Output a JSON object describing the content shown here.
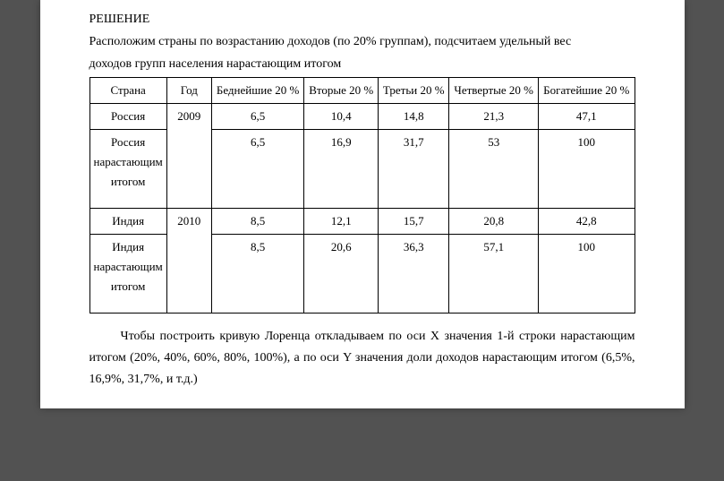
{
  "heading": "РЕШЕНИЕ",
  "intro_line1": "Расположим страны по возрастанию доходов (по 20% группам), подсчитаем удельный вес",
  "intro_line2": "доходов групп населения нарастающим итогом",
  "table": {
    "headers": {
      "country": "Страна",
      "year": "Год",
      "poorest": "Беднейшие 20 %",
      "second": "Вторые 20 %",
      "third": "Третьи 20 %",
      "fourth": "Четвертые 20 %",
      "richest": "Богатейшие 20 %"
    },
    "rows": [
      {
        "country": "Россия",
        "year": "2009",
        "c1": "6,5",
        "c2": "10,4",
        "c3": "14,8",
        "c4": "21,3",
        "c5": "47,1"
      },
      {
        "country": "Россия нарастающим итогом",
        "year": "",
        "c1": "6,5",
        "c2": "16,9",
        "c3": "31,7",
        "c4": "53",
        "c5": "100"
      },
      {
        "country": "Индия",
        "year": "2010",
        "c1": "8,5",
        "c2": "12,1",
        "c3": "15,7",
        "c4": "20,8",
        "c5": "42,8"
      },
      {
        "country": "Индия нарастающим итогом",
        "year": "",
        "c1": "8,5",
        "c2": "20,6",
        "c3": "36,3",
        "c4": "57,1",
        "c5": "100"
      }
    ]
  },
  "para_after": "Чтобы построить кривую Лоренца откладываем по оси X значения 1-й строки нарастающим итогом (20%, 40%, 60%, 80%, 100%), а по оси Y значения доли доходов нарастающим итогом (6,5%, 16,9%, 31,7%, и т.д.)"
}
